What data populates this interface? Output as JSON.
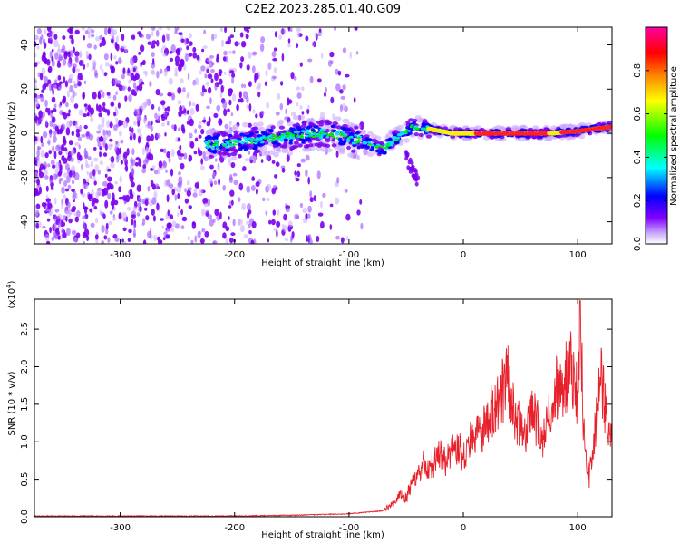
{
  "chart_data": [
    {
      "type": "heatmap",
      "title": "C2E2.2023.285.01.40.G09",
      "xlabel": "Height of straight line (km)",
      "ylabel": "Frequency (Hz)",
      "xlim": [
        -375,
        130
      ],
      "ylim": [
        -50,
        48
      ],
      "xticks": [
        -300,
        -200,
        -100,
        0,
        100
      ],
      "yticks": [
        -40,
        -20,
        0,
        20,
        40
      ],
      "colorbar": {
        "label": "Normalized spectral amplitude",
        "range": [
          0.0,
          1.0
        ],
        "ticks": [
          0.0,
          0.2,
          0.4,
          0.6,
          0.8
        ],
        "colormap": [
          "#ffffff",
          "#8000ff",
          "#0000ff",
          "#00ffff",
          "#00ff00",
          "#ffff00",
          "#ff8000",
          "#ff0000",
          "#ff00a0"
        ]
      },
      "ridge_center_hz": [
        {
          "x": -220,
          "y": -5
        },
        {
          "x": -180,
          "y": -3
        },
        {
          "x": -150,
          "y": -1
        },
        {
          "x": -120,
          "y": 0
        },
        {
          "x": -100,
          "y": -2
        },
        {
          "x": -80,
          "y": -5
        },
        {
          "x": -70,
          "y": -7
        },
        {
          "x": -60,
          "y": -3
        },
        {
          "x": -45,
          "y": 3
        },
        {
          "x": -30,
          "y": 2
        },
        {
          "x": -10,
          "y": 0
        },
        {
          "x": 20,
          "y": 0
        },
        {
          "x": 50,
          "y": 0
        },
        {
          "x": 75,
          "y": 0
        },
        {
          "x": 100,
          "y": 1
        },
        {
          "x": 130,
          "y": 3
        }
      ],
      "noise_region_x": [
        -375,
        -85
      ]
    },
    {
      "type": "line",
      "xlabel": "Height of straight line (km)",
      "ylabel": "SNR (10 * v/v)",
      "y_multiplier": "(x10^4)",
      "y_multiplier_base": "(x10",
      "y_multiplier_exp": "4",
      "y_multiplier_close": ")",
      "xlim": [
        -375,
        130
      ],
      "ylim": [
        0,
        2.9
      ],
      "xticks": [
        -300,
        -200,
        -100,
        0,
        100
      ],
      "yticks": [
        0.0,
        0.5,
        1.0,
        1.5,
        2.0,
        2.5
      ],
      "line_color": "#e8202a",
      "series": [
        {
          "name": "SNR",
          "x": [
            -375,
            -300,
            -200,
            -150,
            -100,
            -70,
            -60,
            -55,
            -50,
            -45,
            -40,
            -35,
            -30,
            -25,
            -20,
            -15,
            -10,
            -5,
            0,
            5,
            10,
            15,
            20,
            25,
            30,
            35,
            38,
            40,
            45,
            50,
            55,
            60,
            65,
            70,
            75,
            80,
            85,
            90,
            95,
            100,
            102,
            105,
            110,
            115,
            120,
            125,
            130
          ],
          "y": [
            0.01,
            0.01,
            0.01,
            0.02,
            0.04,
            0.08,
            0.2,
            0.3,
            0.25,
            0.45,
            0.55,
            0.7,
            0.6,
            0.75,
            0.85,
            0.7,
            0.9,
            0.95,
            0.8,
            1.0,
            1.05,
            1.1,
            1.25,
            1.4,
            1.6,
            1.7,
            1.95,
            1.7,
            1.35,
            1.2,
            1.1,
            1.4,
            1.25,
            1.05,
            1.4,
            1.7,
            1.65,
            1.9,
            1.95,
            1.55,
            2.85,
            1.2,
            0.5,
            1.1,
            1.9,
            1.4,
            1.0
          ]
        }
      ]
    }
  ]
}
